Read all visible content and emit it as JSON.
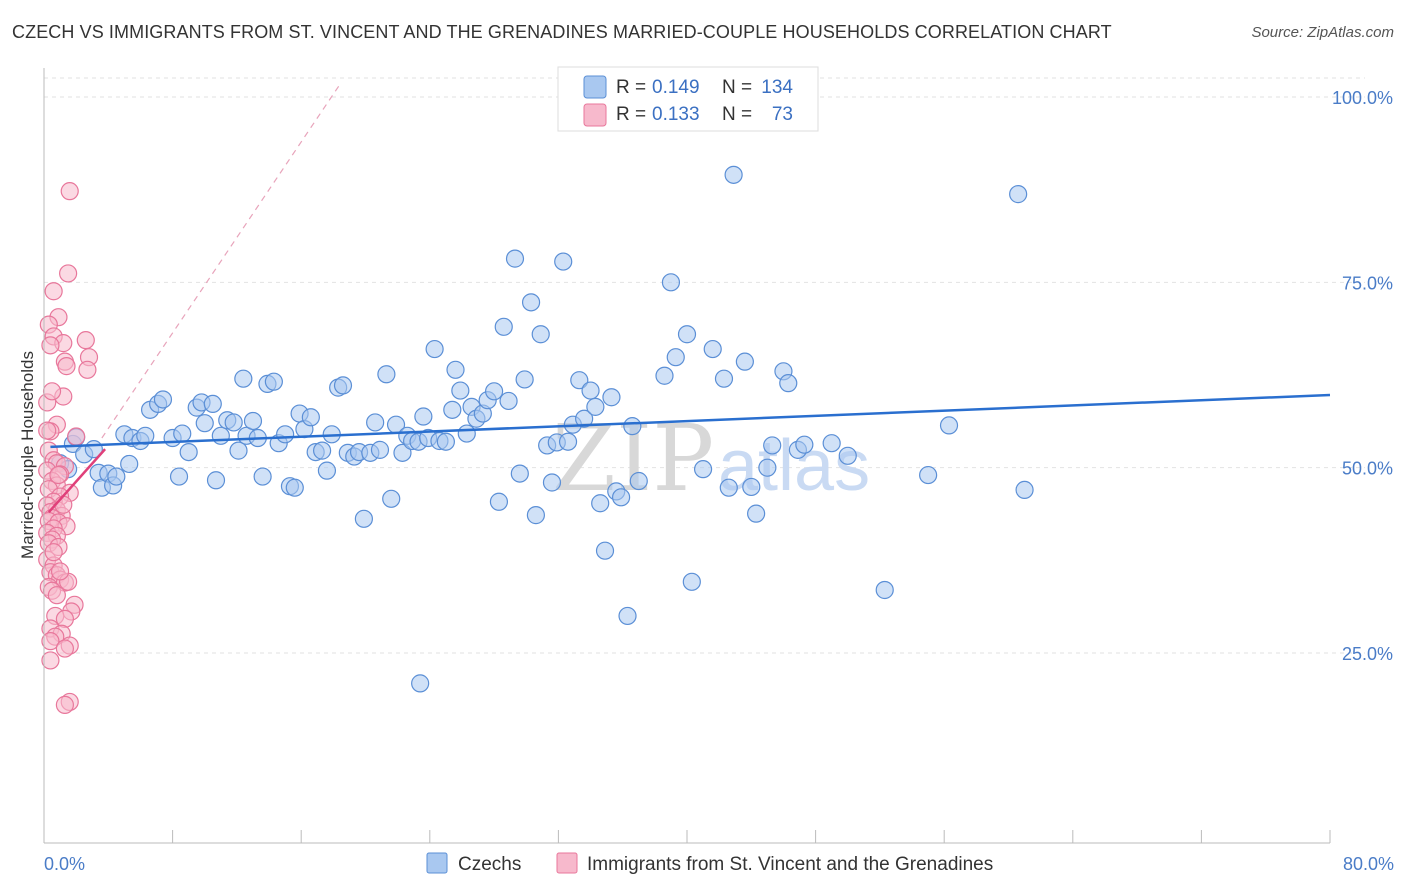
{
  "title": "CZECH VS IMMIGRANTS FROM ST. VINCENT AND THE GRENADINES MARRIED-COUPLE HOUSEHOLDS CORRELATION CHART",
  "source": "Source: ZipAtlas.com",
  "watermark": {
    "zip": "ZIP",
    "atlas": "atlas"
  },
  "colors": {
    "czech_fill": "#a9c8f0",
    "czech_stroke": "#5b8fd6",
    "czech_line": "#2a6fcf",
    "svg_fill": "#f7b9cc",
    "svg_stroke": "#e8779b",
    "svg_line": "#e0407a",
    "grid": "#e2e2e2",
    "axis_text": "#4a7cc7"
  },
  "legend": {
    "rows": [
      {
        "r_label": "R = ",
        "r_value": "0.149",
        "n_label": "N = ",
        "n_value": "134"
      },
      {
        "r_label": "R = ",
        "r_value": "0.133",
        "n_label": "N = ",
        "n_value": "73"
      }
    ]
  },
  "chart_data": {
    "type": "scatter",
    "title": "CZECH VS IMMIGRANTS FROM ST. VINCENT AND THE GRENADINES MARRIED-COUPLE HOUSEHOLDS CORRELATION CHART",
    "xlabel": "",
    "ylabel": "Married-couple Households",
    "xlim": [
      0,
      80
    ],
    "ylim": [
      0,
      105
    ],
    "x_tick_labels": [
      "0.0%",
      "80.0%"
    ],
    "y_ticks": [
      25,
      50,
      75,
      100
    ],
    "y_tick_labels": [
      "25.0%",
      "50.0%",
      "75.0%",
      "100.0%"
    ],
    "grid": true,
    "legend_position": "top-center",
    "series": [
      {
        "name": "Czechs",
        "r": 0.149,
        "n": 134,
        "trend": {
          "x": [
            0.4,
            80
          ],
          "y": [
            52.8,
            59.8
          ]
        },
        "points": [
          [
            1.0,
            50.6
          ],
          [
            1.5,
            49.8
          ],
          [
            1.8,
            53.2
          ],
          [
            2.0,
            54.1
          ],
          [
            2.5,
            51.8
          ],
          [
            3.1,
            52.5
          ],
          [
            3.4,
            49.3
          ],
          [
            3.6,
            47.3
          ],
          [
            4.0,
            49.2
          ],
          [
            4.3,
            47.6
          ],
          [
            4.5,
            48.8
          ],
          [
            5.0,
            54.5
          ],
          [
            5.3,
            50.5
          ],
          [
            5.5,
            54.0
          ],
          [
            6.0,
            53.6
          ],
          [
            6.3,
            54.3
          ],
          [
            6.6,
            57.8
          ],
          [
            7.1,
            58.6
          ],
          [
            7.4,
            59.2
          ],
          [
            8.0,
            54.0
          ],
          [
            8.4,
            48.8
          ],
          [
            8.6,
            54.6
          ],
          [
            9.0,
            52.1
          ],
          [
            9.5,
            58.1
          ],
          [
            9.8,
            58.8
          ],
          [
            10.0,
            56.0
          ],
          [
            10.5,
            58.6
          ],
          [
            10.7,
            48.3
          ],
          [
            11.0,
            54.3
          ],
          [
            11.4,
            56.4
          ],
          [
            11.8,
            56.1
          ],
          [
            12.1,
            52.3
          ],
          [
            12.4,
            62.0
          ],
          [
            12.6,
            54.3
          ],
          [
            13.0,
            56.3
          ],
          [
            13.3,
            54.0
          ],
          [
            13.6,
            48.8
          ],
          [
            13.9,
            61.3
          ],
          [
            14.3,
            61.6
          ],
          [
            14.6,
            53.3
          ],
          [
            15.0,
            54.5
          ],
          [
            15.3,
            47.5
          ],
          [
            15.6,
            47.3
          ],
          [
            15.9,
            57.3
          ],
          [
            16.2,
            55.2
          ],
          [
            16.6,
            56.8
          ],
          [
            16.9,
            52.1
          ],
          [
            17.3,
            52.3
          ],
          [
            17.6,
            49.6
          ],
          [
            17.9,
            54.5
          ],
          [
            18.3,
            60.8
          ],
          [
            18.6,
            61.1
          ],
          [
            18.9,
            52.0
          ],
          [
            19.3,
            51.5
          ],
          [
            19.6,
            52.1
          ],
          [
            19.9,
            43.1
          ],
          [
            20.3,
            52.0
          ],
          [
            20.6,
            56.1
          ],
          [
            20.9,
            52.4
          ],
          [
            21.3,
            62.6
          ],
          [
            21.6,
            45.8
          ],
          [
            21.9,
            55.8
          ],
          [
            22.3,
            52.0
          ],
          [
            22.6,
            54.3
          ],
          [
            22.9,
            53.6
          ],
          [
            23.3,
            53.5
          ],
          [
            23.6,
            56.9
          ],
          [
            23.9,
            54.0
          ],
          [
            24.3,
            66.0
          ],
          [
            24.6,
            53.6
          ],
          [
            25.0,
            53.5
          ],
          [
            25.4,
            57.8
          ],
          [
            25.6,
            63.2
          ],
          [
            25.9,
            60.4
          ],
          [
            26.3,
            54.6
          ],
          [
            26.6,
            58.2
          ],
          [
            26.9,
            56.6
          ],
          [
            27.3,
            57.3
          ],
          [
            27.6,
            59.1
          ],
          [
            28.0,
            60.3
          ],
          [
            28.3,
            45.4
          ],
          [
            28.6,
            69.0
          ],
          [
            28.9,
            59.0
          ],
          [
            29.3,
            78.2
          ],
          [
            29.6,
            49.2
          ],
          [
            29.9,
            61.9
          ],
          [
            30.3,
            72.3
          ],
          [
            30.6,
            43.6
          ],
          [
            30.9,
            68.0
          ],
          [
            31.3,
            53.0
          ],
          [
            31.6,
            48.0
          ],
          [
            31.9,
            53.4
          ],
          [
            32.3,
            77.8
          ],
          [
            32.6,
            53.5
          ],
          [
            32.9,
            55.8
          ],
          [
            33.3,
            61.8
          ],
          [
            33.6,
            56.6
          ],
          [
            34.0,
            60.4
          ],
          [
            34.3,
            58.2
          ],
          [
            34.6,
            45.2
          ],
          [
            34.9,
            38.8
          ],
          [
            35.3,
            59.5
          ],
          [
            35.6,
            46.8
          ],
          [
            35.9,
            46.0
          ],
          [
            36.3,
            30.0
          ],
          [
            36.6,
            55.6
          ],
          [
            37.0,
            48.2
          ],
          [
            38.6,
            62.4
          ],
          [
            39.0,
            75.0
          ],
          [
            39.3,
            64.9
          ],
          [
            40.0,
            68.0
          ],
          [
            40.3,
            34.6
          ],
          [
            41.0,
            49.8
          ],
          [
            41.6,
            66.0
          ],
          [
            42.3,
            62.0
          ],
          [
            42.6,
            47.3
          ],
          [
            42.9,
            89.5
          ],
          [
            43.6,
            64.3
          ],
          [
            44.0,
            47.4
          ],
          [
            44.3,
            43.8
          ],
          [
            45.0,
            50.0
          ],
          [
            45.3,
            53.0
          ],
          [
            46.0,
            63.0
          ],
          [
            46.3,
            61.4
          ],
          [
            46.9,
            52.4
          ],
          [
            47.3,
            53.1
          ],
          [
            49.0,
            53.3
          ],
          [
            50.0,
            51.6
          ],
          [
            52.3,
            33.5
          ],
          [
            55.0,
            49.0
          ],
          [
            56.3,
            55.7
          ],
          [
            60.6,
            86.9
          ],
          [
            61.0,
            47.0
          ],
          [
            23.4,
            20.9
          ]
        ]
      },
      {
        "name": "Immigrants from St. Vincent and the Grenadines",
        "r": 0.133,
        "n": 73,
        "trend": {
          "x": [
            0.3,
            3.8
          ],
          "y": [
            44.0,
            52.5
          ]
        },
        "points": [
          [
            1.6,
            87.3
          ],
          [
            1.5,
            76.2
          ],
          [
            0.6,
            73.8
          ],
          [
            0.9,
            70.3
          ],
          [
            0.3,
            69.3
          ],
          [
            0.6,
            67.7
          ],
          [
            2.6,
            67.2
          ],
          [
            1.2,
            66.8
          ],
          [
            0.4,
            66.5
          ],
          [
            2.8,
            64.9
          ],
          [
            1.3,
            64.3
          ],
          [
            1.4,
            63.7
          ],
          [
            2.7,
            63.2
          ],
          [
            1.2,
            59.6
          ],
          [
            0.2,
            58.8
          ],
          [
            0.8,
            55.8
          ],
          [
            0.4,
            54.9
          ],
          [
            2.0,
            54.2
          ],
          [
            0.3,
            52.3
          ],
          [
            0.6,
            51.0
          ],
          [
            0.8,
            50.6
          ],
          [
            1.3,
            50.2
          ],
          [
            0.2,
            49.6
          ],
          [
            1.0,
            49.1
          ],
          [
            0.5,
            48.2
          ],
          [
            0.8,
            47.6
          ],
          [
            0.3,
            47.1
          ],
          [
            1.6,
            46.6
          ],
          [
            1.0,
            46.1
          ],
          [
            0.6,
            45.4
          ],
          [
            0.2,
            44.9
          ],
          [
            0.8,
            44.3
          ],
          [
            0.4,
            44.0
          ],
          [
            1.1,
            43.5
          ],
          [
            0.5,
            43.2
          ],
          [
            0.3,
            42.8
          ],
          [
            0.9,
            42.6
          ],
          [
            1.4,
            42.1
          ],
          [
            0.6,
            41.8
          ],
          [
            0.2,
            41.2
          ],
          [
            0.8,
            40.8
          ],
          [
            0.5,
            40.3
          ],
          [
            0.3,
            39.8
          ],
          [
            0.9,
            39.3
          ],
          [
            0.2,
            37.6
          ],
          [
            0.6,
            36.8
          ],
          [
            0.4,
            35.9
          ],
          [
            0.8,
            35.5
          ],
          [
            1.0,
            34.9
          ],
          [
            1.3,
            34.5
          ],
          [
            0.3,
            33.9
          ],
          [
            1.5,
            34.6
          ],
          [
            0.5,
            33.4
          ],
          [
            0.8,
            32.8
          ],
          [
            1.9,
            31.5
          ],
          [
            1.7,
            30.6
          ],
          [
            0.7,
            30.0
          ],
          [
            1.3,
            29.6
          ],
          [
            0.4,
            28.3
          ],
          [
            1.1,
            27.6
          ],
          [
            0.7,
            27.2
          ],
          [
            0.4,
            26.6
          ],
          [
            1.6,
            26.0
          ],
          [
            1.3,
            25.6
          ],
          [
            0.4,
            24.0
          ],
          [
            1.6,
            18.4
          ],
          [
            1.3,
            18.0
          ],
          [
            0.9,
            49.0
          ],
          [
            0.2,
            55.0
          ],
          [
            0.5,
            60.3
          ],
          [
            1.0,
            36.0
          ],
          [
            0.6,
            38.6
          ],
          [
            1.2,
            45.0
          ]
        ]
      }
    ]
  },
  "bottom_legend": [
    "Czechs",
    "Immigrants from St. Vincent and the Grenadines"
  ]
}
